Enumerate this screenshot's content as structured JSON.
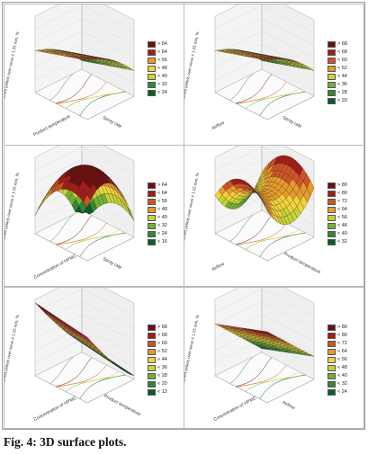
{
  "caption": "Fig. 4: 3D surface plots.",
  "colors": {
    "level_1": "#0c5c2a",
    "level_2": "#2f8a2f",
    "level_3": "#73b130",
    "level_4": "#c8d336",
    "level_5": "#f2d23a",
    "level_6": "#e89a2a",
    "level_7": "#cf5423",
    "level_8": "#a41d18",
    "level_9": "#6e0f0f"
  },
  "chart_data": [
    {
      "type": "surface3d",
      "zlabel": "Retained pellets over sieve # 1.25 mm, %",
      "xlabel": "Product temperature",
      "ylabel": "Spray rate",
      "legend": [
        "> 64",
        "< 64",
        "< 56",
        "< 48",
        "< 40",
        "< 32",
        "< 24"
      ],
      "shape": "plane"
    },
    {
      "type": "surface3d",
      "zlabel": "Retained pellets over sieve # 1.25 mm, %",
      "xlabel": "Airflow",
      "ylabel": "Spray rate",
      "legend": [
        "> 68",
        "< 68",
        "< 60",
        "< 52",
        "< 44",
        "< 36",
        "< 28",
        "< 20"
      ],
      "shape": "plane"
    },
    {
      "type": "surface3d",
      "zlabel": "Retained pellets over sieve # 1.25 mm, %",
      "xlabel": "Concentration of HPMC",
      "ylabel": "Spray rate",
      "legend": [
        "> 64",
        "< 64",
        "< 56",
        "< 48",
        "< 40",
        "< 32",
        "< 24",
        "< 16"
      ],
      "shape": "dome"
    },
    {
      "type": "surface3d",
      "zlabel": "Retained pellets over sieve # 1.25 mm, %",
      "xlabel": "Airflow",
      "ylabel": "Product temperature",
      "legend": [
        "> 80",
        "< 80",
        "< 72",
        "< 64",
        "< 56",
        "< 48",
        "< 40",
        "< 32"
      ],
      "shape": "saddle"
    },
    {
      "type": "surface3d",
      "zlabel": "Retained pellets over sieve # 1.25 mm, %",
      "xlabel": "Concentration of HPMC",
      "ylabel": "Product temperature",
      "legend": [
        "> 68",
        "< 68",
        "< 60",
        "< 52",
        "< 44",
        "< 36",
        "< 28",
        "< 20",
        "< 12"
      ],
      "shape": "slope"
    },
    {
      "type": "surface3d",
      "zlabel": "Retained pellets over sieve # 1.25 mm, %",
      "xlabel": "Concentration of HPMC",
      "ylabel": "Airflow",
      "legend": [
        "> 80",
        "< 80",
        "< 72",
        "< 64",
        "< 56",
        "< 48",
        "< 40",
        "< 32",
        "< 24"
      ],
      "shape": "plane2"
    }
  ]
}
